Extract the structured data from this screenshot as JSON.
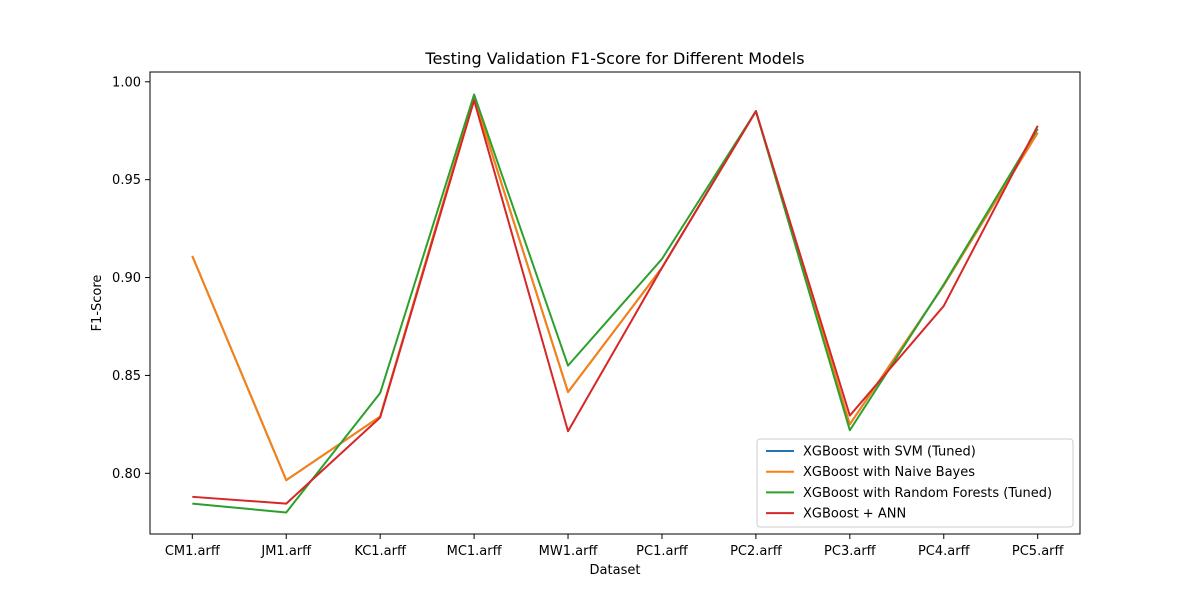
{
  "chart_data": {
    "type": "line",
    "title": "Testing Validation F1-Score for Different Models",
    "xlabel": "Dataset",
    "ylabel": "F1-Score",
    "categories": [
      "CM1.arff",
      "JM1.arff",
      "KC1.arff",
      "MC1.arff",
      "MW1.arff",
      "PC1.arff",
      "PC2.arff",
      "PC3.arff",
      "PC4.arff",
      "PC5.arff"
    ],
    "ylim": [
      0.769,
      1.005
    ],
    "yticks": [
      0.8,
      0.85,
      0.9,
      0.95,
      1.0
    ],
    "ytick_labels": [
      "0.80",
      "0.85",
      "0.90",
      "0.95",
      "1.00"
    ],
    "grid": false,
    "legend_position": "lower-right",
    "series": [
      {
        "name": "XGBoost with SVM (Tuned)",
        "color": "#1f77b4",
        "values": [
          0.911,
          0.7965,
          0.829,
          0.992,
          0.8415,
          0.905,
          0.985,
          0.825,
          0.896,
          0.974
        ]
      },
      {
        "name": "XGBoost with Naive Bayes",
        "color": "#ff7f0e",
        "values": [
          0.911,
          0.7965,
          0.829,
          0.992,
          0.8415,
          0.905,
          0.985,
          0.825,
          0.896,
          0.974
        ]
      },
      {
        "name": "XGBoost with Random Forests (Tuned)",
        "color": "#2ca02c",
        "values": [
          0.7845,
          0.78,
          0.841,
          0.9935,
          0.855,
          0.9095,
          0.985,
          0.822,
          0.8965,
          0.976
        ]
      },
      {
        "name": "XGBoost + ANN",
        "color": "#d62728",
        "values": [
          0.788,
          0.7845,
          0.8285,
          0.9905,
          0.8215,
          0.905,
          0.985,
          0.8295,
          0.8855,
          0.9775
        ]
      }
    ]
  }
}
